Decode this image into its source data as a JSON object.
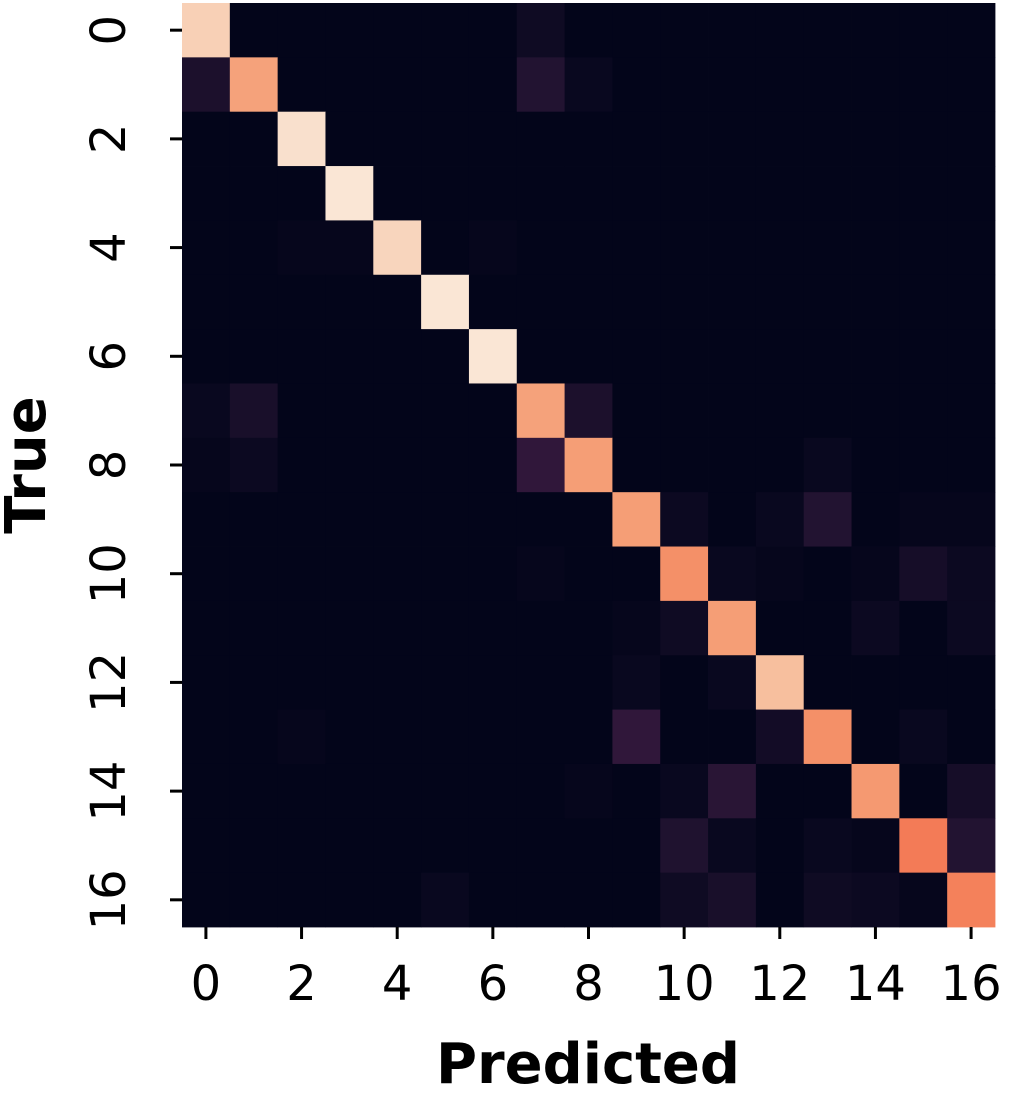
{
  "chart_data": {
    "type": "heatmap",
    "x_label": "Predicted",
    "y_label": "True",
    "x_categories": [
      0,
      null,
      2,
      null,
      4,
      null,
      6,
      null,
      8,
      null,
      10,
      null,
      12,
      null,
      14,
      null,
      16
    ],
    "y_categories": [
      0,
      null,
      2,
      null,
      4,
      null,
      6,
      null,
      8,
      null,
      10,
      null,
      12,
      null,
      14,
      null,
      16
    ],
    "zlim": [
      0,
      1
    ],
    "colormap": [
      "#03051a",
      "#221331",
      "#451c47",
      "#691f55",
      "#921c5b",
      "#b91657",
      "#d92847",
      "#ef4a3c",
      "#f4875e",
      "#f6b48e",
      "#faebdd"
    ],
    "values": [
      [
        0.95,
        0,
        0,
        0,
        0,
        0,
        0,
        0.04,
        0,
        0,
        0,
        0,
        0,
        0,
        0,
        0,
        0
      ],
      [
        0.08,
        0.86,
        0,
        0,
        0,
        0,
        0,
        0.1,
        0.02,
        0,
        0,
        0,
        0,
        0,
        0,
        0,
        0
      ],
      [
        0,
        0,
        0.98,
        0,
        0,
        0,
        0,
        0,
        0,
        0,
        0,
        0,
        0,
        0,
        0,
        0,
        0
      ],
      [
        0,
        0,
        0,
        0.99,
        0,
        0,
        0,
        0,
        0,
        0,
        0,
        0,
        0,
        0,
        0,
        0,
        0
      ],
      [
        0,
        0,
        0.01,
        0.01,
        0.96,
        0,
        0.01,
        0,
        0,
        0,
        0,
        0,
        0,
        0,
        0,
        0,
        0
      ],
      [
        0,
        0,
        0,
        0,
        0,
        0.99,
        0,
        0,
        0,
        0,
        0,
        0,
        0,
        0,
        0,
        0,
        0
      ],
      [
        0,
        0,
        0,
        0,
        0,
        0,
        0.99,
        0,
        0,
        0,
        0,
        0,
        0,
        0,
        0,
        0,
        0
      ],
      [
        0.02,
        0.07,
        0,
        0,
        0,
        0,
        0,
        0.86,
        0.08,
        0,
        0,
        0,
        0,
        0,
        0,
        0,
        0
      ],
      [
        0.01,
        0.03,
        0,
        0,
        0,
        0,
        0,
        0.14,
        0.85,
        0,
        0,
        0,
        0,
        0.02,
        0,
        0,
        0
      ],
      [
        0,
        0,
        0,
        0,
        0,
        0,
        0,
        0,
        0,
        0.85,
        0.03,
        0,
        0.02,
        0.1,
        0,
        0.01,
        0.01
      ],
      [
        0,
        0,
        0,
        0,
        0,
        0,
        0,
        0.01,
        0,
        0,
        0.82,
        0.02,
        0.01,
        0,
        0.01,
        0.06,
        0.03
      ],
      [
        0,
        0,
        0,
        0,
        0,
        0,
        0,
        0,
        0,
        0.01,
        0.04,
        0.85,
        0,
        0,
        0.03,
        0,
        0.03
      ],
      [
        0,
        0,
        0,
        0,
        0,
        0,
        0,
        0,
        0,
        0.02,
        0,
        0.02,
        0.92,
        0,
        0,
        0,
        0
      ],
      [
        0,
        0,
        0.01,
        0,
        0,
        0,
        0,
        0,
        0,
        0.14,
        0,
        0,
        0.05,
        0.82,
        0,
        0.02,
        0
      ],
      [
        0,
        0,
        0,
        0,
        0,
        0,
        0,
        0,
        0.01,
        0,
        0.02,
        0.12,
        0,
        0,
        0.84,
        0,
        0.06
      ],
      [
        0,
        0,
        0,
        0,
        0,
        0,
        0,
        0,
        0,
        0,
        0.09,
        0.02,
        0,
        0.02,
        0.01,
        0.78,
        0.1
      ],
      [
        0,
        0,
        0,
        0,
        0,
        0.02,
        0,
        0,
        0,
        0,
        0.04,
        0.07,
        0,
        0.04,
        0.03,
        0.01,
        0.79
      ]
    ]
  }
}
